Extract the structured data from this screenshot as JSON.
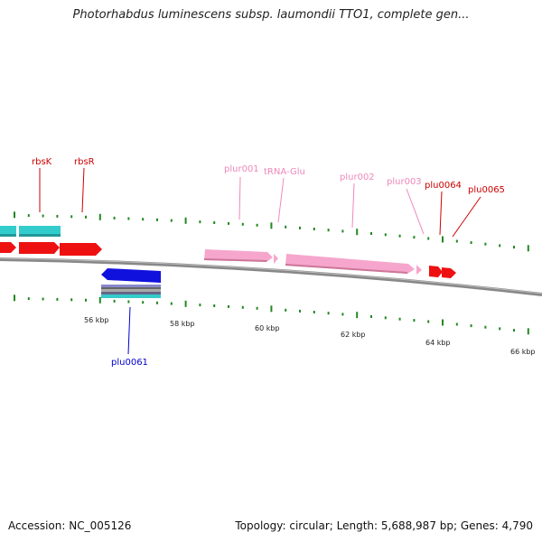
{
  "title": "Photorhabdus luminescens subsp. laumondii TTO1, complete gen...",
  "footer": {
    "accession": "Accession: NC_005126",
    "summary": "Topology: circular; Length: 5,688,987 bp; Genes: 4,790"
  },
  "colors": {
    "gene_label": "#cc0000",
    "pseudo_label": "#ee88bb",
    "reverse_label": "#0000cc",
    "tick": "#228822",
    "backbone": "#888888",
    "teal": "#33cccc",
    "red": "#ee1111",
    "pink": "#f6a6cc",
    "blue": "#1111dd"
  },
  "scale_labels": [
    "56 kbp",
    "58 kbp",
    "60 kbp",
    "62 kbp",
    "64 kbp",
    "66 kbp"
  ],
  "feature_labels": {
    "rbsK": "rbsK",
    "rbsR": "rbsR",
    "plur001": "plur001",
    "trna": "tRNA-Glu",
    "plur002": "plur002",
    "plur003": "plur003",
    "plu0064": "plu0064",
    "plu0065": "plu0065",
    "plu0061": "plu0061"
  }
}
